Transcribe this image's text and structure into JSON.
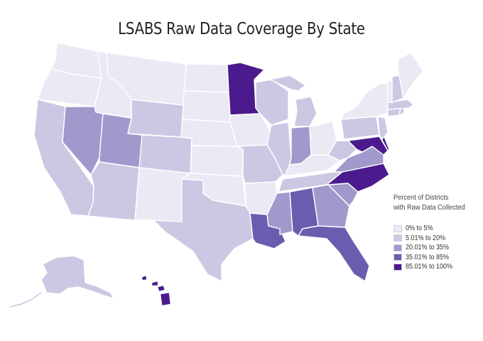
{
  "title": "LSABS Raw Data Coverage By State",
  "colors": {
    "c1": "#ebe9f4",
    "c2": "#cbc8e3",
    "c3": "#9f9acb",
    "c4": "#6c5caf",
    "c5": "#4b1a8c",
    "border": "#ffffff"
  },
  "legend": {
    "title_line1": "Percent of Districts",
    "title_line2": "with Raw Data Collected",
    "items": [
      {
        "label": "0% to 5%",
        "color": "#ebe9f4"
      },
      {
        "label": "5.01% to 20%",
        "color": "#cbc8e3"
      },
      {
        "label": "20.01% to 35%",
        "color": "#9f9acb"
      },
      {
        "label": "35.01% to 85%",
        "color": "#6c5caf"
      },
      {
        "label": "85.01% to 100%",
        "color": "#4b1a8c"
      }
    ]
  },
  "state_classes": {
    "WA": "c1",
    "OR": "c1",
    "ID": "c1",
    "MT": "c1",
    "ND": "c1",
    "SD": "c1",
    "NE": "c1",
    "KS": "c1",
    "OK": "c1",
    "NM": "c1",
    "IA": "c1",
    "AR": "c1",
    "OH": "c1",
    "KY": "c1",
    "ME": "c1",
    "NY": "c1",
    "VT": "c1",
    "CA": "c2",
    "WY": "c2",
    "CO": "c2",
    "AZ": "c2",
    "TX": "c2",
    "MO": "c2",
    "WI": "c2",
    "MI": "c2",
    "IL": "c2",
    "TN": "c2",
    "WV": "c2",
    "PA": "c2",
    "NH": "c2",
    "MA": "c2",
    "CT": "c2",
    "RI": "c2",
    "NJ": "c2",
    "AK": "c2",
    "NV": "c3",
    "UT": "c3",
    "IN": "c3",
    "MS": "c3",
    "GA": "c3",
    "SC": "c3",
    "VA": "c3",
    "LA": "c4",
    "AL": "c4",
    "FL": "c4",
    "MN": "c5",
    "NC": "c5",
    "MD": "c5",
    "DE": "c5",
    "HI": "c5"
  }
}
